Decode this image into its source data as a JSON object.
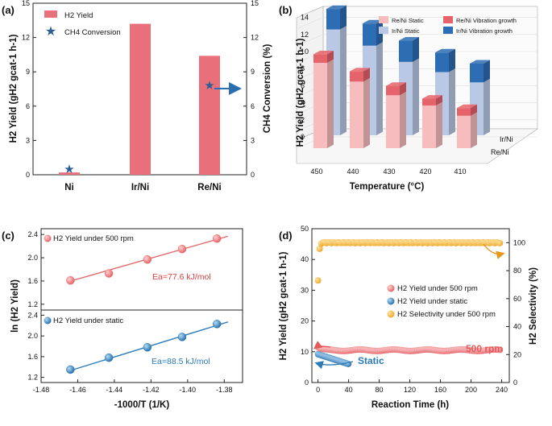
{
  "panels": [
    "(a)",
    "(b)",
    "(c)",
    "(d)"
  ],
  "chart_data": [
    {
      "id": "a",
      "type": "bar",
      "categories": [
        "Ni",
        "Ir/Ni",
        "Re/Ni"
      ],
      "series": [
        {
          "name": "H2 Yield",
          "values": [
            0.2,
            13.2,
            10.4
          ],
          "axis": "left",
          "color": "#e9707a"
        },
        {
          "name": "CH4 Conversion",
          "values": [
            0.5,
            null,
            7.8
          ],
          "axis": "right",
          "marker": "star",
          "color": "#2b5f93"
        }
      ],
      "ylabel": "H2 Yield (gH2 gcat-1 h-1)",
      "y2label": "CH4 Conversion (%)",
      "ylim": [
        0,
        15
      ],
      "y2lim": [
        0,
        15
      ],
      "yticks": [
        "0",
        "3",
        "6",
        "9",
        "12",
        "15"
      ],
      "y2ticks": [
        "0",
        "3",
        "6",
        "9",
        "12",
        "15"
      ],
      "legend": [
        "H2 Yield",
        "CH4 Conversion"
      ]
    },
    {
      "id": "b",
      "type": "bar",
      "subtype": "3d-stacked",
      "categories": [
        "450",
        "440",
        "430",
        "420",
        "410"
      ],
      "series": [
        {
          "name": "Re/Ni Static",
          "values": [
            10.0,
            7.8,
            6.2,
            5.0,
            3.8
          ],
          "color": "#f6bcbe"
        },
        {
          "name": "Re/Ni Vibration growth",
          "values": [
            1.0,
            1.2,
            1.1,
            0.8,
            0.9
          ],
          "color": "#e5636a"
        },
        {
          "name": "Ir/Ni Static",
          "values": [
            12.4,
            10.5,
            8.6,
            7.4,
            6.2
          ],
          "color": "#b9c8e4"
        },
        {
          "name": "Ir/Ni Vibration growth",
          "values": [
            2.4,
            2.6,
            2.5,
            2.3,
            2.2
          ],
          "color": "#2d6db3"
        }
      ],
      "rows": [
        "Ir/Ni",
        "Re/Ni"
      ],
      "ylabel": "H2 Yield (gH2 gcat-1 h-1)",
      "xlabel": "Temperature (°C)",
      "ylim": [
        0,
        14
      ],
      "zticks": [
        "0",
        "2",
        "4",
        "6",
        "8",
        "10",
        "12",
        "14"
      ]
    },
    {
      "id": "c",
      "type": "scatter",
      "x": [
        -1.464,
        -1.443,
        -1.422,
        -1.403,
        -1.384
      ],
      "series": [
        {
          "name": "H2 Yield under 500 rpm",
          "values": [
            1.61,
            1.73,
            1.97,
            2.15,
            2.33
          ],
          "color": "#e46a6a",
          "ylim": [
            1.1,
            2.5
          ],
          "yticks": [
            "1.2",
            "1.6",
            "2.0",
            "2.4"
          ],
          "fit": [
            [
              -1.466,
              1.58
            ],
            [
              -1.378,
              2.37
            ]
          ],
          "annotation": "Ea=77.6 kJ/mol"
        },
        {
          "name": "H2 Yield under static",
          "values": [
            1.35,
            1.58,
            1.78,
            1.98,
            2.23
          ],
          "color": "#2a7bb8",
          "ylim": [
            1.1,
            2.5
          ],
          "yticks": [
            "1.2",
            "1.6",
            "2.0",
            "2.4"
          ],
          "fit": [
            [
              -1.466,
              1.31
            ],
            [
              -1.378,
              2.27
            ]
          ],
          "annotation": "Ea=88.5 kJ/mol"
        }
      ],
      "xlabel": "-1000/T (1/K)",
      "ylabel": "ln (H2 Yield)",
      "xlim": [
        -1.48,
        -1.37
      ],
      "xticks": [
        "-1.48",
        "-1.46",
        "-1.44",
        "-1.42",
        "-1.40",
        "-1.38"
      ]
    },
    {
      "id": "d",
      "type": "scatter",
      "xlabel": "Reaction Time (h)",
      "ylabel": "H2 Yield (gH2 gcat-1 h-1)",
      "y2label": "H2 Selectivity (%)",
      "xlim": [
        -8,
        250
      ],
      "ylim": [
        0,
        50
      ],
      "y2lim": [
        0,
        110
      ],
      "xticks": [
        "0",
        "40",
        "80",
        "120",
        "160",
        "200",
        "240"
      ],
      "yticks": [
        "0",
        "10",
        "20",
        "30",
        "40",
        "50"
      ],
      "y2ticks": [
        "0",
        "20",
        "40",
        "60",
        "80",
        "100"
      ],
      "series": [
        {
          "name": "H2 Yield under 500 rpm",
          "axis": "left",
          "color": "#f0898c",
          "x_range": [
            0,
            238
          ],
          "trend": "starts 11.5, settles near 10.3-10.8"
        },
        {
          "name": "H2 Yield under static",
          "axis": "left",
          "color": "#2a7bb8",
          "x_range": [
            0,
            40
          ],
          "trend": "decreases from 9.2 to 6.0"
        },
        {
          "name": "H2 Selectivity under 500 rpm",
          "axis": "right",
          "color": "#f2b02e",
          "x_range": [
            0,
            238
          ],
          "trend": "rises from 73 to 100 within 5 h, then ~100"
        }
      ],
      "annotations": [
        "500 rpm",
        "Static"
      ]
    }
  ]
}
